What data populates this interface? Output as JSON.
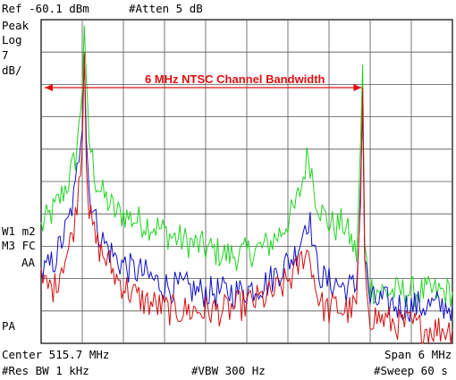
{
  "header": {
    "ref": "Ref -60.1 dBm",
    "atten": "#Atten 5 dB",
    "detector": "Peak",
    "scale_type": "Log",
    "scale_value": "7",
    "scale_unit": "dB/"
  },
  "left_labels": {
    "trace_a": "W1 m2",
    "trace_b": "M3 FC",
    "trace_c": "AA",
    "pa": "PA"
  },
  "footer": {
    "center": "Center 515.7 MHz",
    "span": "Span 6 MHz",
    "rbw": "#Res BW 1 kHz",
    "vbw": "#VBW 300 Hz",
    "sweep": "#Sweep 60 s"
  },
  "annotation": {
    "text": "6 MHz NTSC Channel Bandwidth",
    "color": "#e01010"
  },
  "colors": {
    "green": "#22d422",
    "blue": "#1010c8",
    "red": "#d41010",
    "grid": "#555555"
  },
  "chart_data": {
    "type": "line",
    "xlim": [
      512.7,
      518.7
    ],
    "ylim": [
      -130.1,
      -60.1
    ],
    "x_unit": "MHz",
    "y_unit": "dBm",
    "series": [
      {
        "color": "green",
        "points": [
          [
            512.7,
            -105
          ],
          [
            512.8,
            -103
          ],
          [
            512.9,
            -101
          ],
          [
            513.0,
            -98
          ],
          [
            513.1,
            -95
          ],
          [
            513.2,
            -90
          ],
          [
            513.25,
            -84
          ],
          [
            513.3,
            -74
          ],
          [
            513.33,
            -60.5
          ],
          [
            513.36,
            -76
          ],
          [
            513.4,
            -86
          ],
          [
            513.5,
            -95
          ],
          [
            513.6,
            -98
          ],
          [
            513.7,
            -100
          ],
          [
            513.8,
            -102
          ],
          [
            513.9,
            -102
          ],
          [
            514.0,
            -103
          ],
          [
            514.2,
            -104
          ],
          [
            514.4,
            -105
          ],
          [
            514.6,
            -107
          ],
          [
            514.8,
            -108
          ],
          [
            515.0,
            -109
          ],
          [
            515.2,
            -110
          ],
          [
            515.4,
            -111
          ],
          [
            515.6,
            -111
          ],
          [
            515.8,
            -110
          ],
          [
            516.0,
            -109
          ],
          [
            516.2,
            -106
          ],
          [
            516.4,
            -101
          ],
          [
            516.5,
            -96
          ],
          [
            516.55,
            -92
          ],
          [
            516.6,
            -89
          ],
          [
            516.65,
            -93
          ],
          [
            516.7,
            -98
          ],
          [
            516.8,
            -102
          ],
          [
            516.9,
            -104
          ],
          [
            517.0,
            -105
          ],
          [
            517.1,
            -104
          ],
          [
            517.2,
            -107
          ],
          [
            517.3,
            -111
          ],
          [
            517.36,
            -88
          ],
          [
            517.39,
            -70
          ],
          [
            517.42,
            -110
          ],
          [
            517.5,
            -118
          ],
          [
            517.7,
            -119
          ],
          [
            517.9,
            -119
          ],
          [
            518.1,
            -119
          ],
          [
            518.3,
            -119
          ],
          [
            518.5,
            -119
          ],
          [
            518.7,
            -119
          ]
        ]
      },
      {
        "color": "blue",
        "points": [
          [
            512.7,
            -115
          ],
          [
            512.8,
            -114
          ],
          [
            512.9,
            -112
          ],
          [
            513.0,
            -108
          ],
          [
            513.1,
            -104
          ],
          [
            513.2,
            -97
          ],
          [
            513.25,
            -89
          ],
          [
            513.3,
            -81
          ],
          [
            513.33,
            -66
          ],
          [
            513.36,
            -85
          ],
          [
            513.4,
            -97
          ],
          [
            513.5,
            -104
          ],
          [
            513.6,
            -108
          ],
          [
            513.7,
            -110
          ],
          [
            513.8,
            -112
          ],
          [
            514.0,
            -114
          ],
          [
            514.2,
            -115
          ],
          [
            514.4,
            -117
          ],
          [
            514.6,
            -118
          ],
          [
            514.8,
            -118
          ],
          [
            515.0,
            -119
          ],
          [
            515.2,
            -119
          ],
          [
            515.4,
            -119
          ],
          [
            515.6,
            -119
          ],
          [
            515.8,
            -118
          ],
          [
            516.0,
            -117
          ],
          [
            516.2,
            -114
          ],
          [
            516.4,
            -111
          ],
          [
            516.5,
            -107
          ],
          [
            516.55,
            -104
          ],
          [
            516.6,
            -103
          ],
          [
            516.65,
            -106
          ],
          [
            516.7,
            -112
          ],
          [
            516.8,
            -116
          ],
          [
            516.9,
            -117
          ],
          [
            517.0,
            -117
          ],
          [
            517.1,
            -118
          ],
          [
            517.2,
            -118
          ],
          [
            517.3,
            -118
          ],
          [
            517.36,
            -96
          ],
          [
            517.39,
            -77
          ],
          [
            517.42,
            -112
          ],
          [
            517.5,
            -121
          ],
          [
            517.7,
            -121
          ],
          [
            517.9,
            -122
          ],
          [
            518.1,
            -122
          ],
          [
            518.3,
            -122
          ],
          [
            518.5,
            -122
          ],
          [
            518.7,
            -122
          ]
        ]
      },
      {
        "color": "red",
        "points": [
          [
            512.7,
            -117
          ],
          [
            512.8,
            -118
          ],
          [
            512.9,
            -118
          ],
          [
            513.0,
            -113
          ],
          [
            513.1,
            -110
          ],
          [
            513.2,
            -103
          ],
          [
            513.25,
            -95
          ],
          [
            513.3,
            -86
          ],
          [
            513.33,
            -66
          ],
          [
            513.36,
            -89
          ],
          [
            513.4,
            -102
          ],
          [
            513.5,
            -108
          ],
          [
            513.6,
            -111
          ],
          [
            513.7,
            -113
          ],
          [
            513.8,
            -116
          ],
          [
            514.0,
            -119
          ],
          [
            514.2,
            -121
          ],
          [
            514.4,
            -122
          ],
          [
            514.6,
            -123
          ],
          [
            514.8,
            -123
          ],
          [
            515.0,
            -123
          ],
          [
            515.2,
            -123
          ],
          [
            515.4,
            -123
          ],
          [
            515.6,
            -122
          ],
          [
            515.8,
            -121
          ],
          [
            516.0,
            -120
          ],
          [
            516.2,
            -118
          ],
          [
            516.4,
            -115
          ],
          [
            516.5,
            -112
          ],
          [
            516.55,
            -110
          ],
          [
            516.6,
            -111
          ],
          [
            516.65,
            -113
          ],
          [
            516.7,
            -118
          ],
          [
            516.8,
            -122
          ],
          [
            516.9,
            -123
          ],
          [
            517.0,
            -122
          ],
          [
            517.1,
            -123
          ],
          [
            517.2,
            -123
          ],
          [
            517.3,
            -122
          ],
          [
            517.36,
            -100
          ],
          [
            517.39,
            -78
          ],
          [
            517.42,
            -114
          ],
          [
            517.5,
            -124
          ],
          [
            517.7,
            -125
          ],
          [
            517.9,
            -126
          ],
          [
            518.1,
            -126
          ],
          [
            518.3,
            -127
          ],
          [
            518.5,
            -127
          ],
          [
            518.7,
            -127
          ]
        ]
      }
    ],
    "annotation_range": [
      512.7,
      517.4
    ],
    "grid": true
  }
}
